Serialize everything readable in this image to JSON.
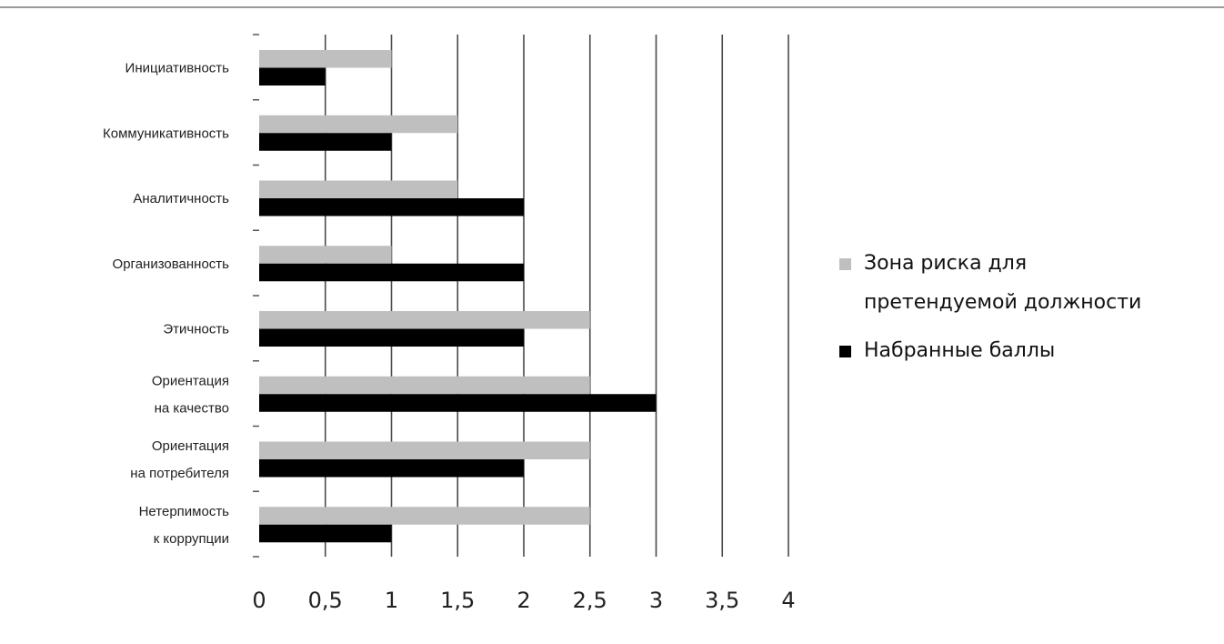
{
  "chart_data": {
    "type": "bar",
    "orientation": "horizontal",
    "categories": [
      "Инициативность",
      "Коммуникативность",
      "Аналитичность",
      "Организованность",
      "Этичность",
      "Ориентация на качество",
      "Ориентация на потребителя",
      "Нетерпимость к коррупции"
    ],
    "category_lines": [
      [
        "Инициативность"
      ],
      [
        "Коммуникативность"
      ],
      [
        "Аналитичность"
      ],
      [
        "Организованность"
      ],
      [
        "Этичность"
      ],
      [
        "Ориентация",
        "на качество"
      ],
      [
        "Ориентация",
        "на потребителя"
      ],
      [
        "Нетерпимость",
        "к коррупции"
      ]
    ],
    "series": [
      {
        "name": "Зона риска для претендуемой должности",
        "color": "#bfbfbf",
        "values": [
          1,
          1.5,
          1.5,
          1,
          2.5,
          2.5,
          2.5,
          2.5
        ]
      },
      {
        "name": "Набранные баллы",
        "color": "#000000",
        "values": [
          0.5,
          1,
          2,
          2,
          2,
          3,
          2,
          1
        ]
      }
    ],
    "legend_lines": [
      [
        "Зона риска для",
        "претендуемой должности"
      ],
      [
        "Набранные баллы"
      ]
    ],
    "xlim": [
      0,
      4
    ],
    "x_ticks": [
      0,
      0.5,
      1,
      1.5,
      2,
      2.5,
      3,
      3.5,
      4
    ],
    "x_tick_labels": [
      "0",
      "0,5",
      "1",
      "1,5",
      "2",
      "2,5",
      "3",
      "3,5",
      "4"
    ],
    "grid": true,
    "legend_position": "right",
    "title": "",
    "xlabel": "",
    "ylabel": ""
  }
}
